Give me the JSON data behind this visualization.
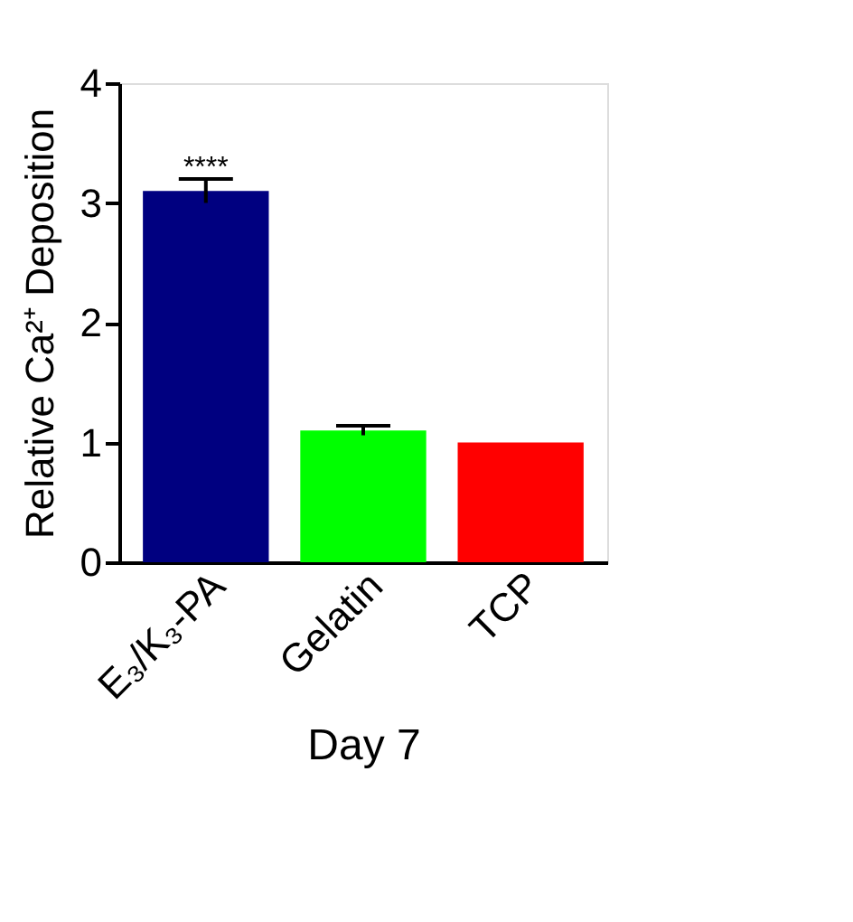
{
  "chart_data": {
    "type": "bar",
    "xlabel": "Day 7",
    "ylabel": "Relative Ca²⁺ Deposition",
    "categories": [
      "E₃/K₃-PA",
      "Gelatin",
      "TCP"
    ],
    "values": [
      3.1,
      1.1,
      1.0
    ],
    "errors": [
      0.1,
      0.04,
      null
    ],
    "colors": [
      "#000080",
      "#00ff00",
      "#ff0000"
    ],
    "ylim": [
      0,
      4
    ],
    "yticks": [
      0,
      1,
      2,
      3,
      4
    ],
    "grid": false,
    "annotations": [
      {
        "text": "****",
        "x": "E₃/K₃-PA",
        "y": 3.24
      }
    ]
  }
}
